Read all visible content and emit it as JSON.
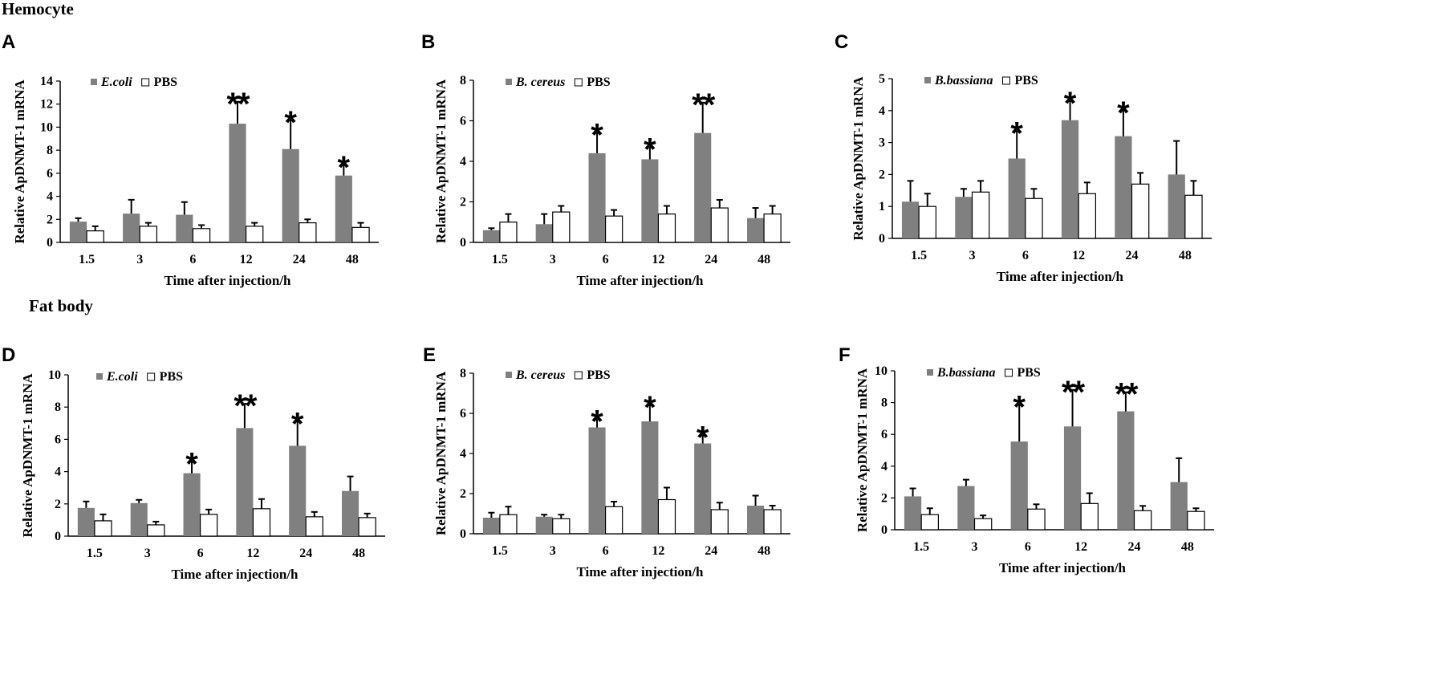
{
  "sections": {
    "hemocyte": "Hemocyte",
    "fat_body": "Fat body"
  },
  "colors": {
    "treated": "#808080",
    "pbs": "#ffffff",
    "stroke": "#000000"
  },
  "chart_data": [
    {
      "panel": "A",
      "type": "bar",
      "title": "",
      "categories": [
        "1.5",
        "3",
        "6",
        "12",
        "24",
        "48"
      ],
      "xlabel": "Time after injection/h",
      "ylabel": "Relative ApDNMT-1 mRNA",
      "ylim": [
        0,
        14
      ],
      "yticks": [
        0,
        2,
        4,
        6,
        8,
        10,
        12,
        14
      ],
      "legend_labels": [
        "E.coli",
        "PBS"
      ],
      "series": [
        {
          "name": "E.coli",
          "values": [
            1.8,
            2.5,
            2.4,
            10.3,
            8.1,
            5.8
          ],
          "errors": [
            0.3,
            1.2,
            1.1,
            1.9,
            2.5,
            0.9
          ]
        },
        {
          "name": "PBS",
          "values": [
            1.0,
            1.4,
            1.2,
            1.4,
            1.7,
            1.3
          ],
          "errors": [
            0.4,
            0.3,
            0.3,
            0.3,
            0.3,
            0.4
          ]
        }
      ],
      "significance": [
        "",
        "",
        "",
        "**",
        "*",
        "*"
      ]
    },
    {
      "panel": "B",
      "type": "bar",
      "title": "",
      "categories": [
        "1.5",
        "3",
        "6",
        "12",
        "24",
        "48"
      ],
      "xlabel": "Time after injection/h",
      "ylabel": "Relative ApDNMT-1 mRNA",
      "ylim": [
        0,
        8
      ],
      "yticks": [
        0,
        2,
        4,
        6,
        8
      ],
      "legend_labels": [
        "B. cereus",
        "PBS"
      ],
      "series": [
        {
          "name": "B. cereus",
          "values": [
            0.6,
            0.9,
            4.4,
            4.1,
            5.4,
            1.2
          ],
          "errors": [
            0.1,
            0.5,
            1.0,
            0.6,
            1.5,
            0.5
          ]
        },
        {
          "name": "PBS",
          "values": [
            1.0,
            1.5,
            1.3,
            1.4,
            1.7,
            1.4
          ],
          "errors": [
            0.4,
            0.3,
            0.3,
            0.4,
            0.4,
            0.4
          ]
        }
      ],
      "significance": [
        "",
        "",
        "*",
        "*",
        "**",
        ""
      ]
    },
    {
      "panel": "C",
      "type": "bar",
      "title": "",
      "categories": [
        "1.5",
        "3",
        "6",
        "12",
        "24",
        "48"
      ],
      "xlabel": "Time after injection/h",
      "ylabel": "Relative ApDNMT-1 mRNA",
      "ylim": [
        0,
        5
      ],
      "yticks": [
        0,
        1,
        2,
        3,
        4,
        5
      ],
      "legend_labels": [
        "B.bassiana",
        "PBS"
      ],
      "series": [
        {
          "name": "B.bassiana",
          "values": [
            1.15,
            1.3,
            2.5,
            3.7,
            3.2,
            2.0
          ],
          "errors": [
            0.65,
            0.25,
            0.85,
            0.6,
            0.8,
            1.05
          ]
        },
        {
          "name": "PBS",
          "values": [
            1.0,
            1.45,
            1.25,
            1.4,
            1.7,
            1.35
          ],
          "errors": [
            0.4,
            0.35,
            0.3,
            0.35,
            0.35,
            0.45
          ]
        }
      ],
      "significance": [
        "",
        "",
        "*",
        "*",
        "*",
        ""
      ]
    },
    {
      "panel": "D",
      "type": "bar",
      "title": "",
      "categories": [
        "1.5",
        "3",
        "6",
        "12",
        "24",
        "48"
      ],
      "xlabel": "Time after injection/h",
      "ylabel": "Relative ApDNMT-1 mRNA",
      "ylim": [
        0,
        10
      ],
      "yticks": [
        0,
        2,
        4,
        6,
        8,
        10
      ],
      "legend_labels": [
        "E.coli",
        "PBS"
      ],
      "series": [
        {
          "name": "E.coli",
          "values": [
            1.75,
            2.05,
            3.9,
            6.7,
            5.6,
            2.8
          ],
          "errors": [
            0.4,
            0.2,
            0.7,
            1.5,
            1.5,
            0.9
          ]
        },
        {
          "name": "PBS",
          "values": [
            0.95,
            0.7,
            1.35,
            1.7,
            1.2,
            1.15
          ],
          "errors": [
            0.4,
            0.2,
            0.3,
            0.6,
            0.3,
            0.25
          ]
        }
      ],
      "significance": [
        "",
        "",
        "*",
        "**",
        "*",
        ""
      ]
    },
    {
      "panel": "E",
      "type": "bar",
      "title": "",
      "categories": [
        "1.5",
        "3",
        "6",
        "12",
        "24",
        "48"
      ],
      "xlabel": "Time after injection/h",
      "ylabel": "Relative ApDNMT-1 mRNA",
      "ylim": [
        0,
        8
      ],
      "yticks": [
        0,
        2,
        4,
        6,
        8
      ],
      "legend_labels": [
        "B. cereus",
        "PBS"
      ],
      "series": [
        {
          "name": "B. cereus",
          "values": [
            0.8,
            0.85,
            5.3,
            5.6,
            4.5,
            1.4
          ],
          "errors": [
            0.25,
            0.1,
            0.4,
            0.8,
            0.4,
            0.5
          ]
        },
        {
          "name": "PBS",
          "values": [
            0.95,
            0.75,
            1.35,
            1.7,
            1.2,
            1.2
          ],
          "errors": [
            0.4,
            0.2,
            0.25,
            0.6,
            0.35,
            0.2
          ]
        }
      ],
      "significance": [
        "",
        "",
        "*",
        "*",
        "*",
        ""
      ]
    },
    {
      "panel": "F",
      "type": "bar",
      "title": "",
      "categories": [
        "1.5",
        "3",
        "6",
        "12",
        "24",
        "48"
      ],
      "xlabel": "Time after injection/h",
      "ylabel": "Relative ApDNMT-1 mRNA",
      "ylim": [
        0,
        10
      ],
      "yticks": [
        0,
        2,
        4,
        6,
        8,
        10
      ],
      "legend_labels": [
        "B.bassiana",
        "PBS"
      ],
      "series": [
        {
          "name": "B.bassiana",
          "values": [
            2.1,
            2.75,
            5.55,
            6.5,
            7.45,
            3.0
          ],
          "errors": [
            0.5,
            0.4,
            2.3,
            2.3,
            1.2,
            1.5
          ]
        },
        {
          "name": "PBS",
          "values": [
            0.95,
            0.7,
            1.3,
            1.65,
            1.2,
            1.15
          ],
          "errors": [
            0.4,
            0.2,
            0.3,
            0.65,
            0.3,
            0.2
          ]
        }
      ],
      "significance": [
        "",
        "",
        "*",
        "**",
        "**",
        ""
      ]
    }
  ]
}
